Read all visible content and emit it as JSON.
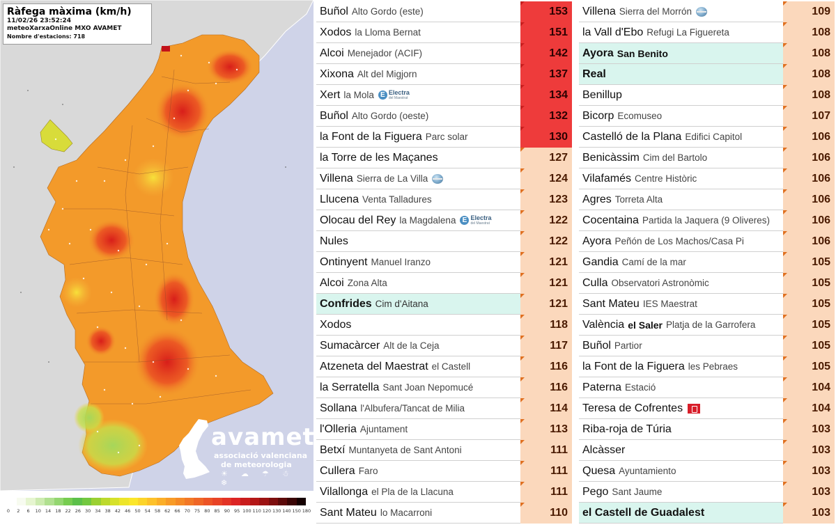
{
  "map": {
    "title": "Ràfega màxima (km/h)",
    "datetime": "11/02/26 23:52:24",
    "source": "meteoXarxaOnline MXO AVAMET",
    "station_count_label": "Nombre d'estacions: 718",
    "colors": {
      "sea": "#cfd3e8",
      "land_outside": "#d9d9d9",
      "low_gust": "#bde05a",
      "mid_gust": "#f39a2a",
      "high_gust": "#e4281e"
    }
  },
  "logo": {
    "name": "avamet",
    "line1": "associació valenciana",
    "line2": "de meteorologia",
    "weather_icons": "☀ ☁ ☂ ☃ ❄"
  },
  "legend": {
    "ticks": [
      "0",
      "2",
      "6",
      "10",
      "14",
      "18",
      "22",
      "26",
      "30",
      "34",
      "38",
      "42",
      "46",
      "50",
      "54",
      "58",
      "62",
      "66",
      "70",
      "75",
      "80",
      "85",
      "90",
      "95",
      "100",
      "110",
      "120",
      "130",
      "140",
      "150",
      "180"
    ],
    "colors": [
      "#f7fbf0",
      "#e6f5d0",
      "#cdebb0",
      "#b0e090",
      "#93d670",
      "#76cc50",
      "#5cc04a",
      "#72c840",
      "#9ad032",
      "#bcd92c",
      "#d6e12a",
      "#ede52a",
      "#fbe62a",
      "#fcd42a",
      "#fdc12a",
      "#fbae28",
      "#f89b27",
      "#f58a26",
      "#f27826",
      "#ef6626",
      "#ec5426",
      "#e84326",
      "#e33325",
      "#dc2424",
      "#c91c1c",
      "#b41717",
      "#9c1212",
      "#7d0e0e",
      "#5c0a0a",
      "#3a0505",
      "#150000"
    ]
  },
  "left_rows": [
    {
      "town": "Buñol",
      "loc": "Alto Gordo (este)",
      "val": "153",
      "hl": false,
      "badge": "",
      "color": "c1"
    },
    {
      "town": "Xodos",
      "loc": "la Lloma Bernat",
      "val": "151",
      "hl": false,
      "badge": "",
      "color": "c1"
    },
    {
      "town": "Alcoi",
      "loc": "Menejador (ACIF)",
      "val": "142",
      "hl": false,
      "badge": "",
      "color": "c1"
    },
    {
      "town": "Xixona",
      "loc": "Alt del Migjorn",
      "val": "137",
      "hl": false,
      "badge": "",
      "color": "c1"
    },
    {
      "town": "Xert",
      "loc": "la Mola",
      "val": "134",
      "hl": false,
      "badge": "electra",
      "color": "c1"
    },
    {
      "town": "Buñol",
      "loc": "Alto Gordo (oeste)",
      "val": "132",
      "hl": false,
      "badge": "",
      "color": "c1"
    },
    {
      "town": "la Font de la Figuera",
      "loc": "Parc solar",
      "val": "130",
      "hl": false,
      "badge": "",
      "color": "c1"
    },
    {
      "town": "la Torre de les Maçanes",
      "loc": "",
      "val": "127",
      "hl": false,
      "badge": "",
      "color": "c2"
    },
    {
      "town": "Villena",
      "loc": "Sierra de La Villa",
      "val": "124",
      "hl": false,
      "badge": "globe",
      "color": "c2"
    },
    {
      "town": "Llucena",
      "loc": "Venta Talladures",
      "val": "123",
      "hl": false,
      "badge": "",
      "color": "c2"
    },
    {
      "town": "Olocau del Rey",
      "loc": "la Magdalena",
      "val": "122",
      "hl": false,
      "badge": "electra",
      "color": "c2"
    },
    {
      "town": "Nules",
      "loc": "",
      "val": "122",
      "hl": false,
      "badge": "",
      "color": "c2"
    },
    {
      "town": "Ontinyent",
      "loc": "Manuel Iranzo",
      "val": "121",
      "hl": false,
      "badge": "",
      "color": "c2"
    },
    {
      "town": "Alcoi",
      "loc": "Zona Alta",
      "val": "121",
      "hl": false,
      "badge": "",
      "color": "c2"
    },
    {
      "town": "Confrides",
      "loc": "Cim d'Aitana",
      "val": "121",
      "hl": true,
      "badge": "",
      "color": "c2"
    },
    {
      "town": "Xodos",
      "loc": "",
      "val": "118",
      "hl": false,
      "badge": "",
      "color": "c2"
    },
    {
      "town": "Sumacàrcer",
      "loc": "Alt de la Ceja",
      "val": "117",
      "hl": false,
      "badge": "",
      "color": "c2"
    },
    {
      "town": "Atzeneta del Maestrat",
      "loc": "el Castell",
      "val": "116",
      "hl": false,
      "badge": "",
      "color": "c2"
    },
    {
      "town": "la Serratella",
      "loc": "Sant Joan Nepomucé",
      "val": "116",
      "hl": false,
      "badge": "",
      "color": "c2"
    },
    {
      "town": "Sollana",
      "loc": "l'Albufera/Tancat de Milia",
      "val": "114",
      "hl": false,
      "badge": "",
      "color": "c2"
    },
    {
      "town": "l'Olleria",
      "loc": "Ajuntament",
      "val": "113",
      "hl": false,
      "badge": "",
      "color": "c2"
    },
    {
      "town": "Betxí",
      "loc": "Muntanyeta de Sant Antoni",
      "val": "111",
      "hl": false,
      "badge": "",
      "color": "c2"
    },
    {
      "town": "Cullera",
      "loc": "Faro",
      "val": "111",
      "hl": false,
      "badge": "",
      "color": "c2"
    },
    {
      "town": "Vilallonga",
      "loc": "el Pla de la Llacuna",
      "val": "111",
      "hl": false,
      "badge": "",
      "color": "c2"
    },
    {
      "town": "Sant Mateu",
      "loc": "lo Macarroni",
      "val": "110",
      "hl": false,
      "badge": "",
      "color": "c2"
    }
  ],
  "right_rows": [
    {
      "town": "Villena",
      "loc": "Sierra del Morrón",
      "val": "109",
      "hl": false,
      "badge": "globe",
      "extra": "",
      "color": "c2"
    },
    {
      "town": "la Vall d'Ebo",
      "loc": "Refugi La Figuereta",
      "val": "108",
      "hl": false,
      "badge": "",
      "extra": "",
      "color": "c2"
    },
    {
      "town": "Ayora",
      "loc": "",
      "val": "108",
      "hl": true,
      "badge": "",
      "extra": "San Benito",
      "color": "c2"
    },
    {
      "town": "Real",
      "loc": "",
      "val": "108",
      "hl": true,
      "badge": "",
      "extra": "",
      "color": "c2"
    },
    {
      "town": "Benillup",
      "loc": "",
      "val": "108",
      "hl": false,
      "badge": "",
      "extra": "",
      "color": "c2"
    },
    {
      "town": "Bicorp",
      "loc": "Ecomuseo",
      "val": "107",
      "hl": false,
      "badge": "",
      "extra": "",
      "color": "c2"
    },
    {
      "town": "Castelló de la Plana",
      "loc": "Edifici Capitol",
      "val": "106",
      "hl": false,
      "badge": "",
      "extra": "",
      "color": "c2"
    },
    {
      "town": "Benicàssim",
      "loc": "Cim del Bartolo",
      "val": "106",
      "hl": false,
      "badge": "",
      "extra": "",
      "color": "c2"
    },
    {
      "town": "Vilafamés",
      "loc": "Centre Històric",
      "val": "106",
      "hl": false,
      "badge": "",
      "extra": "",
      "color": "c2"
    },
    {
      "town": "Agres",
      "loc": "Torreta Alta",
      "val": "106",
      "hl": false,
      "badge": "",
      "extra": "",
      "color": "c2"
    },
    {
      "town": "Cocentaina",
      "loc": "Partida la Jaquera (9 Oliveres)",
      "val": "106",
      "hl": false,
      "badge": "",
      "extra": "",
      "color": "c2"
    },
    {
      "town": "Ayora",
      "loc": "Peñón de Los Machos/Casa Pi",
      "val": "106",
      "hl": false,
      "badge": "",
      "extra": "",
      "color": "c2"
    },
    {
      "town": "Gandia",
      "loc": "Camí de la mar",
      "val": "105",
      "hl": false,
      "badge": "",
      "extra": "",
      "color": "c2"
    },
    {
      "town": "Culla",
      "loc": "Observatori Astronòmic",
      "val": "105",
      "hl": false,
      "badge": "",
      "extra": "",
      "color": "c2"
    },
    {
      "town": "Sant Mateu",
      "loc": "IES Maestrat",
      "val": "105",
      "hl": false,
      "badge": "",
      "extra": "",
      "color": "c2"
    },
    {
      "town": "València",
      "loc": "Platja de la Garrofera",
      "val": "105",
      "hl": false,
      "badge": "",
      "extra": "el Saler",
      "color": "c2"
    },
    {
      "town": "Buñol",
      "loc": "Partior",
      "val": "105",
      "hl": false,
      "badge": "",
      "extra": "",
      "color": "c2"
    },
    {
      "town": "la Font de la Figuera",
      "loc": "les Pebraes",
      "val": "105",
      "hl": false,
      "badge": "",
      "extra": "",
      "color": "c2"
    },
    {
      "town": "Paterna",
      "loc": "Estació",
      "val": "104",
      "hl": false,
      "badge": "",
      "extra": "",
      "color": "c2"
    },
    {
      "town": "Teresa de Cofrentes",
      "loc": "",
      "val": "104",
      "hl": false,
      "badge": "flag",
      "extra": "",
      "color": "c2"
    },
    {
      "town": "Riba-roja de Túria",
      "loc": "",
      "val": "103",
      "hl": false,
      "badge": "",
      "extra": "",
      "color": "c2"
    },
    {
      "town": "Alcàsser",
      "loc": "",
      "val": "103",
      "hl": false,
      "badge": "",
      "extra": "",
      "color": "c2"
    },
    {
      "town": "Quesa",
      "loc": "Ayuntamiento",
      "val": "103",
      "hl": false,
      "badge": "",
      "extra": "",
      "color": "c2"
    },
    {
      "town": "Pego",
      "loc": "Sant Jaume",
      "val": "103",
      "hl": false,
      "badge": "",
      "extra": "",
      "color": "c2"
    },
    {
      "town": "el Castell de Guadalest",
      "loc": "",
      "val": "103",
      "hl": true,
      "badge": "",
      "extra": "",
      "color": "c2"
    }
  ],
  "badges": {
    "electra_mark": "E",
    "electra_line1": "Electra",
    "electra_line2": "del Maestrat"
  }
}
